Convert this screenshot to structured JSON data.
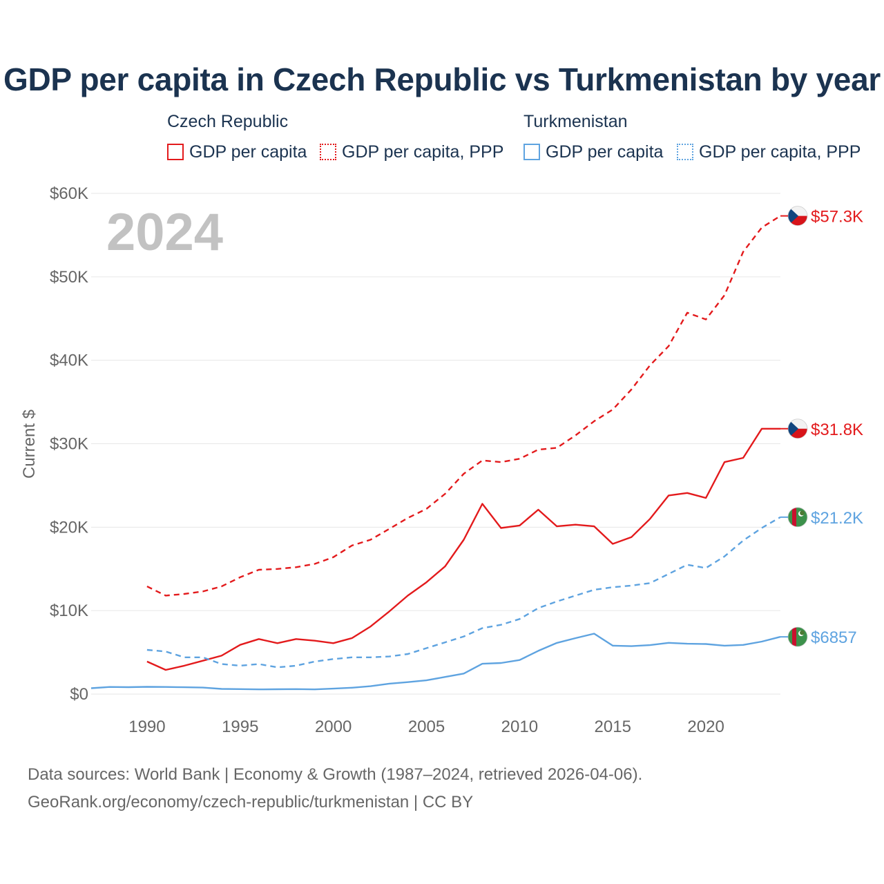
{
  "title": "GDP per capita in Czech Republic vs Turkmenistan by year",
  "legend": {
    "czech_title": "Czech Republic",
    "turkmen_title": "Turkmenistan",
    "gdp_label": "GDP per capita",
    "ppp_label": "GDP per capita, PPP"
  },
  "year_watermark": "2024",
  "source_line1": "Data sources: World Bank | Economy & Growth (1987–2024, retrieved 2026-04-06).",
  "source_line2": "GeoRank.org/economy/czech-republic/turkmenistan | CC BY",
  "colors": {
    "czech": "#e31a1c",
    "turkmen": "#5ea3e0",
    "grid": "#e6e6e6",
    "axis_text": "#666666",
    "title": "#1b3350",
    "watermark": "#c2c2c2"
  },
  "chart_data": {
    "type": "line",
    "title": "GDP per capita in Czech Republic vs Turkmenistan by year",
    "xlabel": "",
    "ylabel": "Current $",
    "xlim": [
      1987,
      2024
    ],
    "ylim": [
      0,
      60000
    ],
    "x_ticks": [
      1990,
      1995,
      2000,
      2005,
      2010,
      2015,
      2020
    ],
    "x_tick_labels": [
      "1990",
      "1995",
      "2000",
      "2005",
      "2010",
      "2015",
      "2020"
    ],
    "y_ticks": [
      0,
      10000,
      20000,
      30000,
      40000,
      50000,
      60000
    ],
    "y_tick_labels": [
      "$0",
      "$10K",
      "$20K",
      "$30K",
      "$40K",
      "$50K",
      "$60K"
    ],
    "series": [
      {
        "name": "Czech Republic GDP per capita",
        "country": "czech",
        "style": "solid",
        "end_label": "$31.8K",
        "x": [
          1990,
          1991,
          1992,
          1993,
          1994,
          1995,
          1996,
          1997,
          1998,
          1999,
          2000,
          2001,
          2002,
          2003,
          2004,
          2005,
          2006,
          2007,
          2008,
          2009,
          2010,
          2011,
          2012,
          2013,
          2014,
          2015,
          2016,
          2017,
          2018,
          2019,
          2020,
          2021,
          2022,
          2023,
          2024
        ],
        "values": [
          3900,
          2900,
          3400,
          4000,
          4600,
          5900,
          6600,
          6100,
          6600,
          6400,
          6100,
          6700,
          8100,
          9900,
          11800,
          13400,
          15300,
          18500,
          22800,
          19900,
          20200,
          22100,
          20100,
          20300,
          20100,
          18000,
          18800,
          21000,
          23800,
          24100,
          23500,
          27800,
          28300,
          31800,
          31800
        ]
      },
      {
        "name": "Czech Republic GDP per capita, PPP",
        "country": "czech",
        "style": "dashed",
        "end_label": "$57.3K",
        "x": [
          1990,
          1991,
          1992,
          1993,
          1994,
          1995,
          1996,
          1997,
          1998,
          1999,
          2000,
          2001,
          2002,
          2003,
          2004,
          2005,
          2006,
          2007,
          2008,
          2009,
          2010,
          2011,
          2012,
          2013,
          2014,
          2015,
          2016,
          2017,
          2018,
          2019,
          2020,
          2021,
          2022,
          2023,
          2024
        ],
        "values": [
          12900,
          11800,
          12000,
          12300,
          12900,
          14000,
          14900,
          15000,
          15200,
          15600,
          16400,
          17800,
          18500,
          19800,
          21100,
          22200,
          24000,
          26400,
          28000,
          27800,
          28200,
          29300,
          29500,
          31000,
          32700,
          34100,
          36500,
          39400,
          41700,
          45700,
          44900,
          47800,
          53000,
          55900,
          57300
        ]
      },
      {
        "name": "Turkmenistan GDP per capita",
        "country": "turkmen",
        "style": "solid",
        "end_label": "$6857",
        "x": [
          1987,
          1988,
          1989,
          1990,
          1991,
          1992,
          1993,
          1994,
          1995,
          1996,
          1997,
          1998,
          1999,
          2000,
          2001,
          2002,
          2003,
          2004,
          2005,
          2006,
          2007,
          2008,
          2009,
          2010,
          2011,
          2012,
          2013,
          2014,
          2015,
          2016,
          2017,
          2018,
          2019,
          2020,
          2021,
          2022,
          2023,
          2024
        ],
        "values": [
          700,
          850,
          830,
          870,
          850,
          820,
          780,
          620,
          600,
          560,
          580,
          600,
          560,
          650,
          760,
          940,
          1250,
          1430,
          1650,
          2050,
          2460,
          3630,
          3720,
          4080,
          5180,
          6130,
          6700,
          7240,
          5800,
          5740,
          5870,
          6140,
          6030,
          6000,
          5800,
          5890,
          6290,
          6857
        ]
      },
      {
        "name": "Turkmenistan GDP per capita, PPP",
        "country": "turkmen",
        "style": "dashed",
        "end_label": "$21.2K",
        "x": [
          1990,
          1991,
          1992,
          1993,
          1994,
          1995,
          1996,
          1997,
          1998,
          1999,
          2000,
          2001,
          2002,
          2003,
          2004,
          2005,
          2006,
          2007,
          2008,
          2009,
          2010,
          2011,
          2012,
          2013,
          2014,
          2015,
          2016,
          2017,
          2018,
          2019,
          2020,
          2021,
          2022,
          2023,
          2024
        ],
        "values": [
          5300,
          5100,
          4400,
          4400,
          3600,
          3400,
          3600,
          3200,
          3400,
          3900,
          4200,
          4400,
          4400,
          4500,
          4800,
          5500,
          6200,
          6900,
          7900,
          8300,
          9000,
          10300,
          11100,
          11800,
          12500,
          12800,
          13000,
          13300,
          14400,
          15500,
          15100,
          16500,
          18400,
          19900,
          21200
        ]
      }
    ]
  }
}
